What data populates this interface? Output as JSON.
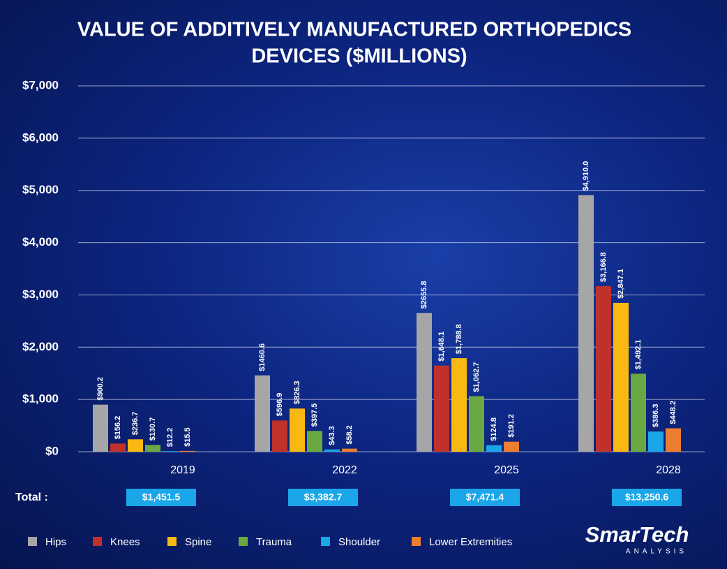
{
  "chart_data": {
    "type": "bar",
    "title": [
      "VALUE OF ADDITIVELY MANUFACTURED ORTHOPEDICS",
      "DEVICES ($MILLIONS)"
    ],
    "categories": [
      "2019",
      "2022",
      "2025",
      "2028"
    ],
    "series": [
      {
        "name": "Hips",
        "color": "#a6a6a6",
        "values": [
          900.2,
          1460.6,
          2655.8,
          4910.0
        ],
        "value_labels": [
          "$900.2",
          "$1460.6",
          "$2655.8",
          "$4,910.0"
        ]
      },
      {
        "name": "Knees",
        "color": "#c0312b",
        "values": [
          156.2,
          596.9,
          1648.1,
          3166.8
        ],
        "value_labels": [
          "$156.2",
          "$596.9",
          "$1,648.1",
          "$3,166.8"
        ]
      },
      {
        "name": "Spine",
        "color": "#f9b912",
        "values": [
          236.7,
          826.3,
          1788.8,
          2847.1
        ],
        "value_labels": [
          "$236.7",
          "$826.3",
          "$1,788.8",
          "$2,847.1"
        ]
      },
      {
        "name": "Trauma",
        "color": "#6aa843",
        "values": [
          130.7,
          397.5,
          1062.7,
          1492.1
        ],
        "value_labels": [
          "$130.7",
          "$397.5",
          "$1,062.7",
          "$1,492.1"
        ]
      },
      {
        "name": "Shoulder",
        "color": "#1aa6e8",
        "values": [
          12.2,
          43.3,
          124.8,
          386.3
        ],
        "value_labels": [
          "$12.2",
          "$43.3",
          "$124.8",
          "$386.3"
        ]
      },
      {
        "name": "Lower Extremities",
        "color": "#ed7d31",
        "values": [
          15.5,
          58.2,
          191.2,
          448.2
        ],
        "value_labels": [
          "$15.5",
          "$58.2",
          "$191.2",
          "$448.2"
        ]
      }
    ],
    "ylim": [
      0,
      7000
    ],
    "yticks": [
      {
        "value": 0,
        "label": "$0"
      },
      {
        "value": 1000,
        "label": "$1,000"
      },
      {
        "value": 2000,
        "label": "$2,000"
      },
      {
        "value": 3000,
        "label": "$3,000"
      },
      {
        "value": 4000,
        "label": "$4,000"
      },
      {
        "value": 5000,
        "label": "$5,000"
      },
      {
        "value": 6000,
        "label": "$6,000"
      },
      {
        "value": 7000,
        "label": "$7,000"
      }
    ],
    "grid": true,
    "legend": "bottom",
    "totals": {
      "label": "Total :",
      "values": [
        "$1,451.5",
        "$3,382.7",
        "$7,471.4",
        "$13,250.6"
      ]
    }
  },
  "logo": {
    "name": "SmarTech",
    "sub": "ANALYSIS"
  }
}
